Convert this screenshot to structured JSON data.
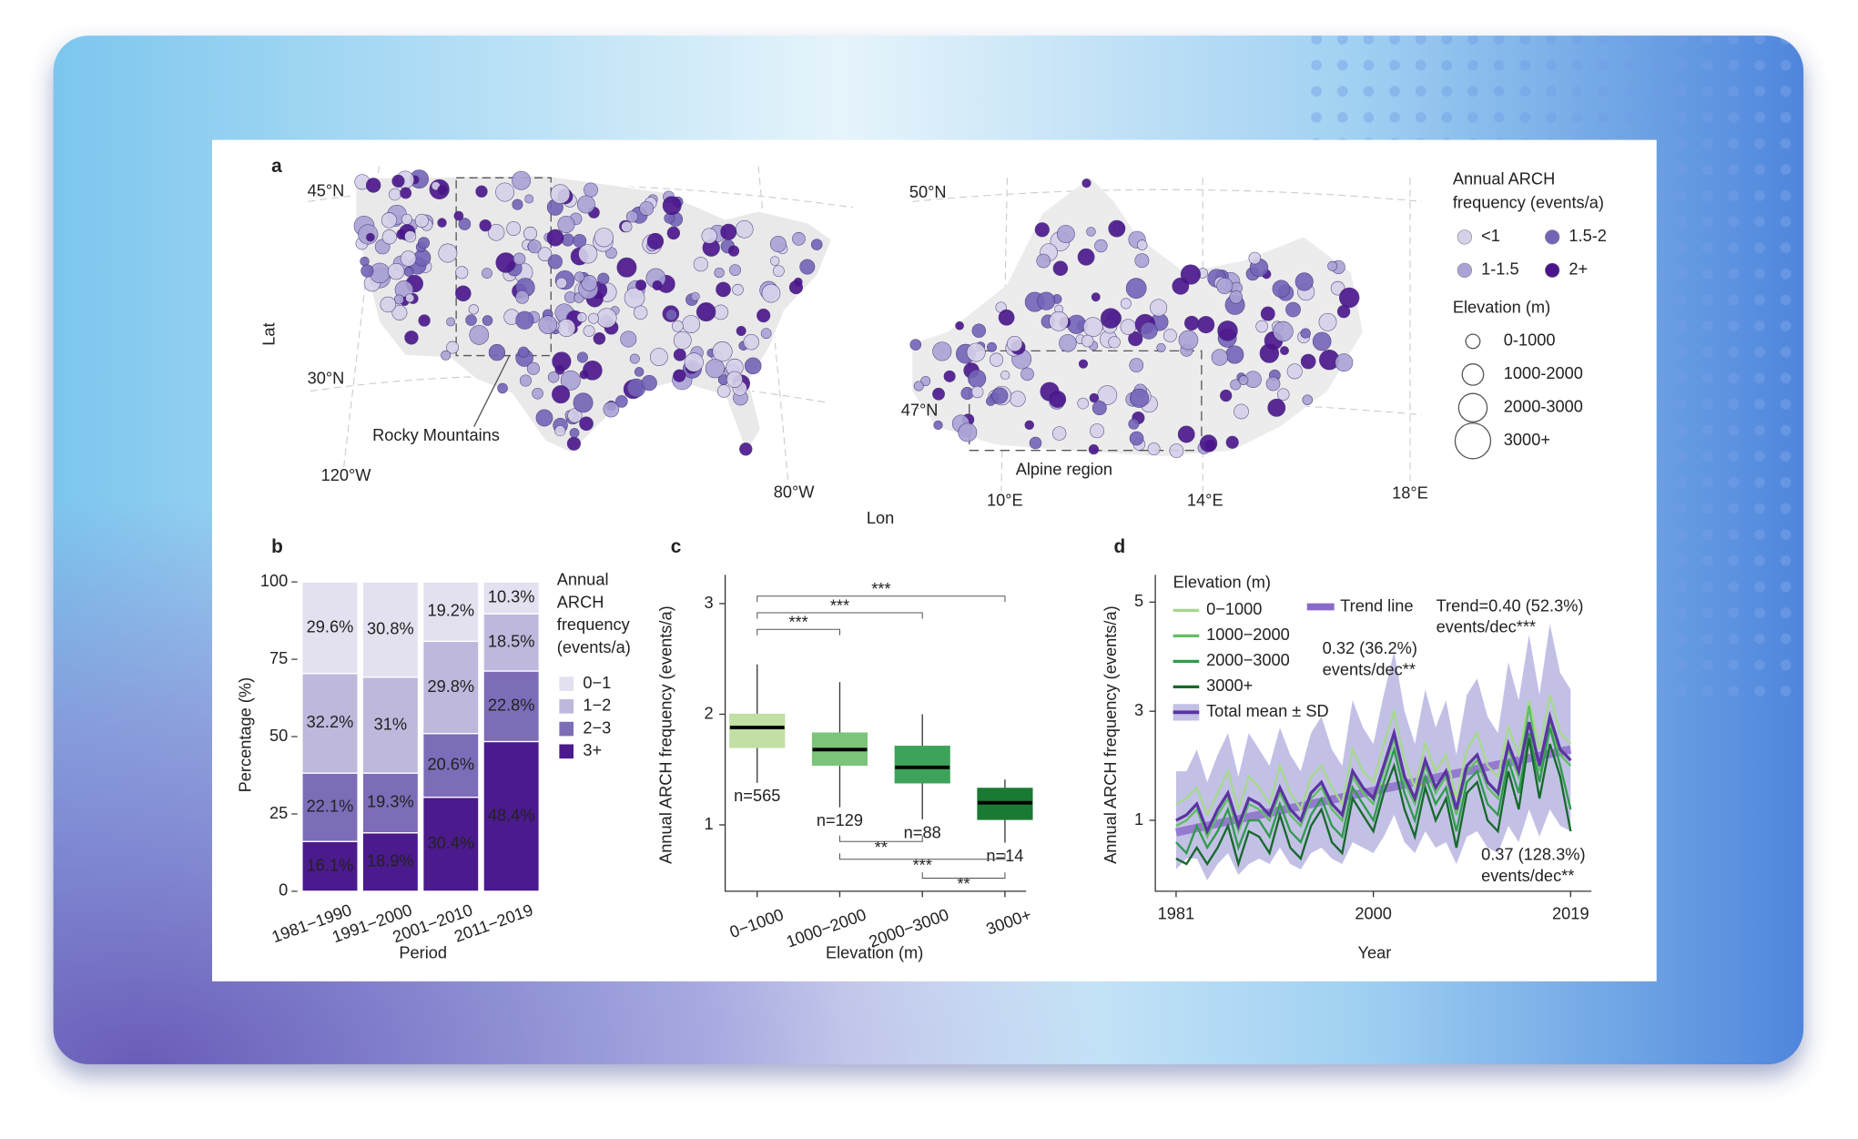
{
  "panel_labels": [
    "a",
    "b",
    "c",
    "d"
  ],
  "map": {
    "lat_label": "Lat",
    "lon_label": "Lon",
    "us": {
      "lat_labels": [
        "45°N",
        "30°N"
      ],
      "lon_labels": [
        "120°W",
        "80°W"
      ],
      "region": "Rocky Mountains"
    },
    "alps": {
      "lat_labels": [
        "50°N",
        "47°N"
      ],
      "lon_labels": [
        "10°E",
        "14°E",
        "18°E"
      ],
      "region": "Alpine region"
    },
    "legend": {
      "title": [
        "Annual ARCH",
        "frequency (events/a)"
      ],
      "classes": [
        {
          "label": "<1",
          "color": "#d6d1ea"
        },
        {
          "label": "1-1.5",
          "color": "#aaa3d6"
        },
        {
          "label": "1.5-2",
          "color": "#7464b8"
        },
        {
          "label": "2+",
          "color": "#4a148c"
        }
      ],
      "size_title": "Elevation (m)",
      "sizes": [
        "0-1000",
        "1000-2000",
        "2000-3000",
        "3000+"
      ]
    }
  },
  "chart_data": [
    {
      "type": "stacked-bar",
      "xlabel": "Period",
      "ylabel": "Percentage (%)",
      "categories": [
        "1981−1990",
        "1991−2000",
        "2001−2010",
        "2011−2019"
      ],
      "legend_title": [
        "Annual",
        "ARCH",
        "frequency",
        "(events/a)"
      ],
      "series": [
        {
          "name": "0−1",
          "color": "#e3e0ef",
          "values": [
            29.6,
            30.8,
            19.2,
            10.3
          ],
          "value_labels": [
            "29.6%",
            "30.8%",
            "19.2%",
            "10.3%"
          ]
        },
        {
          "name": "1−2",
          "color": "#bdb8dc",
          "values": [
            32.2,
            31,
            29.8,
            18.5
          ],
          "value_labels": [
            "32.2%",
            "31%",
            "29.8%",
            "18.5%"
          ]
        },
        {
          "name": "2−3",
          "color": "#7d6cb8",
          "values": [
            22.1,
            19.3,
            20.6,
            22.8
          ],
          "value_labels": [
            "22.1%",
            "19.3%",
            "20.6%",
            "22.8%"
          ]
        },
        {
          "name": "3+",
          "color": "#4b1a8c",
          "values": [
            16.1,
            18.9,
            30.4,
            48.4
          ],
          "value_labels": [
            "16.1%",
            "18.9%",
            "30.4%",
            "48.4%"
          ]
        }
      ],
      "ylim": [
        0,
        100
      ],
      "yticks": [
        0,
        25,
        50,
        75,
        100
      ]
    },
    {
      "type": "box",
      "xlabel": "Elevation (m)",
      "ylabel": "Annual ARCH frequency (events/a)",
      "categories": [
        "0−1000",
        "1000−2000",
        "2000−3000",
        "3000+"
      ],
      "colors": [
        "#c2dfa4",
        "#7cc47a",
        "#3ea35a",
        "#1a7a34"
      ],
      "whisker_low": [
        1.38,
        1.16,
        1.05,
        0.84
      ],
      "q1": [
        1.7,
        1.54,
        1.38,
        1.05
      ],
      "median": [
        1.88,
        1.68,
        1.52,
        1.2
      ],
      "q3": [
        2.0,
        1.83,
        1.71,
        1.33
      ],
      "whisker_high": [
        2.45,
        2.29,
        2.0,
        1.41
      ],
      "n_labels": [
        "n=565",
        "n=129",
        "n=88",
        "n=14"
      ],
      "significance": [
        "***",
        "***",
        "***",
        "**",
        "***",
        "**"
      ],
      "ylim": [
        0.4,
        3.26
      ],
      "yticks": [
        1,
        2,
        3
      ]
    },
    {
      "type": "line",
      "xlabel": "Year",
      "ylabel": "Annual ARCH frequency (events/a)",
      "legend_title": "Elevation (m)",
      "x": [
        1981,
        1982,
        1983,
        1984,
        1985,
        1986,
        1987,
        1988,
        1989,
        1990,
        1991,
        1992,
        1993,
        1994,
        1995,
        1996,
        1997,
        1998,
        1999,
        2000,
        2001,
        2002,
        2003,
        2004,
        2005,
        2006,
        2007,
        2008,
        2009,
        2010,
        2011,
        2012,
        2013,
        2014,
        2015,
        2016,
        2017,
        2018,
        2019
      ],
      "series": [
        {
          "name": "0−1000",
          "color": "#a6d98b",
          "values": [
            1.3,
            1.4,
            1.6,
            1.1,
            1.5,
            1.9,
            1.2,
            1.8,
            1.6,
            1.3,
            2.0,
            1.5,
            1.2,
            1.8,
            2.0,
            1.6,
            1.3,
            2.3,
            1.9,
            1.7,
            2.4,
            3.0,
            2.1,
            1.6,
            2.4,
            1.9,
            2.2,
            1.4,
            2.3,
            2.6,
            2.0,
            1.8,
            2.7,
            2.2,
            3.2,
            2.3,
            3.3,
            2.6,
            2.4
          ]
        },
        {
          "name": "1000−2000",
          "color": "#5fbf62",
          "values": [
            0.9,
            1.0,
            1.2,
            0.7,
            1.1,
            1.4,
            0.8,
            1.3,
            1.2,
            1.0,
            1.5,
            1.1,
            0.9,
            1.4,
            1.6,
            1.2,
            1.0,
            1.8,
            1.5,
            1.3,
            1.9,
            2.5,
            1.7,
            1.3,
            2.0,
            1.5,
            1.8,
            1.1,
            1.9,
            2.1,
            1.6,
            1.4,
            2.3,
            1.8,
            3.1,
            1.9,
            2.8,
            2.2,
            2.0
          ]
        },
        {
          "name": "2000−3000",
          "color": "#2f9b4c",
          "values": [
            0.6,
            0.4,
            0.9,
            0.5,
            0.8,
            1.2,
            0.5,
            1.0,
            1.0,
            0.7,
            1.3,
            0.8,
            0.6,
            1.1,
            1.4,
            0.9,
            0.7,
            1.6,
            1.3,
            1.0,
            1.7,
            2.3,
            1.5,
            1.0,
            1.8,
            1.3,
            1.6,
            0.8,
            1.7,
            1.9,
            1.3,
            1.1,
            2.1,
            1.5,
            2.6,
            1.7,
            2.7,
            2.0,
            1.2
          ]
        },
        {
          "name": "3000+",
          "color": "#17692b",
          "values": [
            0.3,
            0.2,
            0.5,
            0.2,
            0.5,
            0.9,
            0.2,
            0.8,
            0.7,
            0.4,
            1.1,
            0.5,
            0.3,
            0.9,
            1.2,
            0.6,
            0.4,
            1.4,
            1.1,
            0.8,
            1.5,
            2.0,
            1.2,
            0.7,
            1.6,
            1.0,
            1.4,
            0.5,
            1.5,
            1.7,
            1.0,
            0.8,
            1.9,
            1.2,
            2.5,
            1.4,
            2.4,
            1.8,
            0.8
          ]
        },
        {
          "name": "Total mean ± SD",
          "color": "#5a35a0",
          "band_color": "#7a74c8",
          "values": [
            1.0,
            1.1,
            1.3,
            0.8,
            1.2,
            1.5,
            0.9,
            1.4,
            1.3,
            1.1,
            1.6,
            1.2,
            1.0,
            1.5,
            1.7,
            1.3,
            1.1,
            1.9,
            1.6,
            1.4,
            2.0,
            2.6,
            1.8,
            1.4,
            2.1,
            1.6,
            1.9,
            1.2,
            2.0,
            2.2,
            1.7,
            1.5,
            2.4,
            1.9,
            2.8,
            2.0,
            2.9,
            2.3,
            2.1
          ],
          "sd": [
            0.9,
            0.8,
            1.0,
            0.9,
            1.0,
            1.1,
            0.9,
            1.2,
            1.0,
            0.9,
            1.1,
            1.0,
            0.9,
            1.1,
            1.2,
            1.0,
            0.9,
            1.3,
            1.1,
            1.0,
            1.3,
            1.5,
            1.2,
            1.0,
            1.3,
            1.1,
            1.3,
            1.0,
            1.3,
            1.4,
            1.2,
            1.1,
            1.5,
            1.3,
            1.6,
            1.3,
            1.7,
            1.4,
            1.3
          ]
        }
      ],
      "trend": {
        "name": "Trend line",
        "color": "#8a6ac9",
        "x": [
          1981,
          2019
        ],
        "values": [
          0.78,
          2.3
        ]
      },
      "annotations": [
        {
          "lines": [
            "Trend=0.40 (52.3%)",
            "events/dec***"
          ],
          "color": "#5a35a0"
        },
        {
          "lines": [
            "0.32 (36.2%)",
            "events/dec**"
          ],
          "color": "#7cc45a"
        },
        {
          "lines": [
            "0.37 (128.3%)",
            "events/dec**"
          ],
          "color": "#17692b"
        }
      ],
      "xlim": [
        1979,
        2021
      ],
      "ylim": [
        -0.3,
        5.5
      ],
      "xticks": [
        1981,
        2000,
        2019
      ],
      "yticks": [
        1,
        3,
        5
      ]
    }
  ]
}
